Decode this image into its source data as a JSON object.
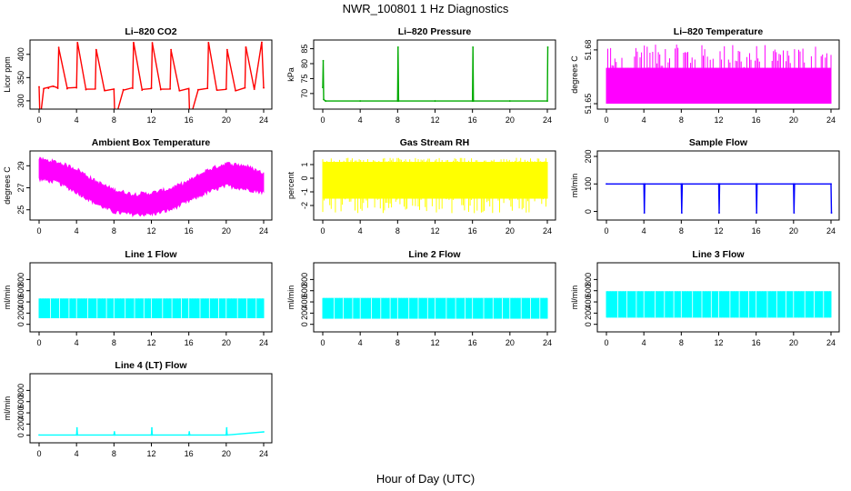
{
  "figure": {
    "title": "NWR_100801  1 Hz Diagnostics",
    "xlabel": "Hour of Day (UTC)"
  },
  "chart_data": [
    {
      "type": "line",
      "title": "Li–820 CO2",
      "ylabel": "Licor ppm",
      "color": "#ff0000",
      "xlim": [
        0,
        24
      ],
      "xticks": [
        "0",
        "4",
        "8",
        "12",
        "16",
        "20",
        "24"
      ],
      "ylim": [
        290,
        425
      ],
      "yticks": [
        300,
        350,
        400
      ],
      "x": [
        0,
        0.1,
        0.5,
        1,
        1.5,
        2,
        2.1,
        3,
        4,
        4.1,
        5,
        6,
        6.1,
        7,
        8,
        8.1,
        9,
        10,
        10.1,
        11,
        12,
        12.1,
        13,
        14,
        14.1,
        15,
        16,
        16.1,
        17,
        18,
        18.1,
        19,
        20,
        20.1,
        21,
        22,
        22.1,
        23,
        23.8,
        24
      ],
      "values": [
        330,
        258,
        326,
        327,
        331,
        327,
        415,
        326,
        328,
        425,
        324,
        326,
        410,
        323,
        325,
        260,
        324,
        327,
        425,
        323,
        328,
        425,
        324,
        326,
        410,
        322,
        325,
        258,
        324,
        327,
        425,
        324,
        326,
        410,
        322,
        328,
        415,
        325,
        426,
        328
      ]
    },
    {
      "type": "line",
      "title": "Li–820 Pressure",
      "ylabel": "kPa",
      "color": "#00aa00",
      "xlim": [
        0,
        24
      ],
      "xticks": [
        "0",
        "4",
        "8",
        "12",
        "16",
        "20",
        "24"
      ],
      "ylim": [
        66,
        87
      ],
      "yticks": [
        70,
        75,
        80,
        85
      ],
      "x": [
        0,
        0.05,
        0.1,
        0.3,
        4,
        8,
        8.05,
        8.1,
        12,
        16,
        16.05,
        16.1,
        20,
        24,
        24.05
      ],
      "values": [
        72,
        81,
        68,
        67.5,
        67.5,
        67.5,
        85.5,
        67.5,
        67.5,
        67.5,
        85.5,
        67.5,
        67.5,
        67.5,
        85.5
      ]
    },
    {
      "type": "area",
      "title": "Li–820 Temperature",
      "ylabel": "degrees C",
      "color": "#ff00ff",
      "xlim": [
        0,
        24
      ],
      "xticks": [
        "0",
        "4",
        "8",
        "12",
        "16",
        "20",
        "24"
      ],
      "ylim": [
        51.649,
        51.684
      ],
      "yticks": [
        51.65,
        51.68
      ],
      "band_min": 51.65,
      "band_max": 51.67,
      "spike_max": 51.683
    },
    {
      "type": "area",
      "title": "Ambient Box Temperature",
      "ylabel": "degrees C",
      "color": "#ff00ff",
      "xlim": [
        0,
        24
      ],
      "xticks": [
        "0",
        "4",
        "8",
        "12",
        "16",
        "20",
        "24"
      ],
      "ylim": [
        24.4,
        30.1
      ],
      "yticks": [
        25,
        27,
        29
      ],
      "x": [
        0,
        2,
        4,
        6,
        8,
        10,
        12,
        14,
        16,
        18,
        20,
        22,
        24
      ],
      "low": [
        27.8,
        27.5,
        26.6,
        25.6,
        24.8,
        24.6,
        24.6,
        25.0,
        25.8,
        26.6,
        27.2,
        26.9,
        26.6
      ],
      "high": [
        29.6,
        29.3,
        28.7,
        27.6,
        26.8,
        26.4,
        26.5,
        26.9,
        27.6,
        28.6,
        29.2,
        29.0,
        28.3
      ]
    },
    {
      "type": "area",
      "title": "Gas Stream RH",
      "ylabel": "percent",
      "color": "#ffff00",
      "xlim": [
        0,
        24
      ],
      "xticks": [
        "0",
        "4",
        "8",
        "12",
        "16",
        "20",
        "24"
      ],
      "ylim": [
        -2.8,
        1.8
      ],
      "yticks": [
        -2,
        -1,
        0,
        1
      ],
      "band_min": -1.5,
      "band_max": 1.2,
      "spike_min": -2.6,
      "spike_max": 1.5
    },
    {
      "type": "line",
      "title": "Sample Flow",
      "ylabel": "ml/min",
      "color": "#0000ff",
      "xlim": [
        0,
        24
      ],
      "xticks": [
        "0",
        "4",
        "8",
        "12",
        "16",
        "20",
        "24"
      ],
      "ylim": [
        -18,
        210
      ],
      "yticks": [
        0,
        100,
        200
      ],
      "x": [
        0,
        4,
        4.05,
        4.1,
        8,
        8.05,
        8.1,
        12,
        12.05,
        12.1,
        16,
        16.05,
        16.1,
        20,
        20.05,
        20.1,
        24,
        24.05
      ],
      "values": [
        100,
        100,
        -5,
        100,
        100,
        -5,
        100,
        100,
        -5,
        100,
        100,
        -5,
        100,
        100,
        -5,
        100,
        100,
        -5
      ]
    },
    {
      "type": "area",
      "title": "Line 1 Flow",
      "ylabel": "ml/min",
      "color": "#00ffff",
      "xlim": [
        0,
        24
      ],
      "xticks": [
        "0",
        "4",
        "8",
        "12",
        "16",
        "20",
        "24"
      ],
      "ylim": [
        -70,
        1050
      ],
      "yticks": [
        0,
        200,
        400,
        600,
        800
      ],
      "band_min": 110,
      "band_max": 460
    },
    {
      "type": "area",
      "title": "Line 2 Flow",
      "ylabel": "ml/min",
      "color": "#00ffff",
      "xlim": [
        0,
        24
      ],
      "xticks": [
        "0",
        "4",
        "8",
        "12",
        "16",
        "20",
        "24"
      ],
      "ylim": [
        -70,
        1050
      ],
      "yticks": [
        0,
        200,
        400,
        600,
        800
      ],
      "band_min": 100,
      "band_max": 470
    },
    {
      "type": "area",
      "title": "Line 3 Flow",
      "ylabel": "ml/min",
      "color": "#00ffff",
      "xlim": [
        0,
        24
      ],
      "xticks": [
        "0",
        "4",
        "8",
        "12",
        "16",
        "20",
        "24"
      ],
      "ylim": [
        -70,
        1050
      ],
      "yticks": [
        0,
        200,
        400,
        600,
        800
      ],
      "band_min": 120,
      "band_max": 590
    },
    {
      "type": "line",
      "title": "Line 4 (LT) Flow",
      "ylabel": "ml/min",
      "color": "#00ffff",
      "xlim": [
        0,
        24
      ],
      "xticks": [
        "0",
        "4",
        "8",
        "12",
        "16",
        "20",
        "24"
      ],
      "ylim": [
        -70,
        1050
      ],
      "yticks": [
        0,
        200,
        400,
        600,
        800
      ],
      "x": [
        0,
        4,
        4.05,
        4.1,
        8,
        8.05,
        8.1,
        12,
        12.05,
        12.1,
        16,
        16.05,
        16.1,
        20,
        20.05,
        20.1,
        24
      ],
      "values": [
        5,
        5,
        130,
        5,
        5,
        60,
        5,
        5,
        130,
        5,
        5,
        60,
        5,
        5,
        130,
        5,
        60
      ]
    }
  ]
}
